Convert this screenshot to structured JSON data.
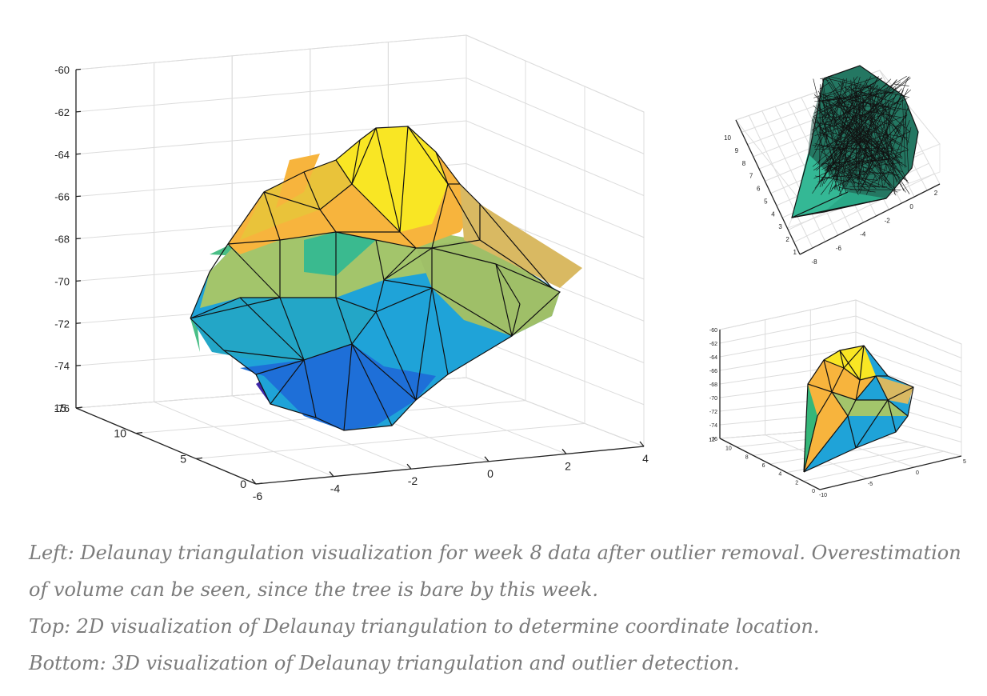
{
  "chart_data": [
    {
      "panel": "left",
      "type": "3d-surface",
      "title": "",
      "xlabel": "",
      "ylabel": "",
      "zlabel": "",
      "xlim": [
        -6,
        4
      ],
      "ylim": [
        0,
        15
      ],
      "zlim": [
        -76,
        -60
      ],
      "x_ticks": [
        "-6",
        "-4",
        "-2",
        "0",
        "2",
        "4"
      ],
      "y_ticks": [
        "0",
        "5",
        "10",
        "15"
      ],
      "z_ticks": [
        "-60",
        "-62",
        "-64",
        "-66",
        "-68",
        "-70",
        "-72",
        "-74",
        "-76"
      ],
      "grid": true,
      "colormap": [
        "#3e26a8",
        "#1e6fd8",
        "#1fa3d8",
        "#35b779",
        "#a3c56b",
        "#f7b43d",
        "#f9e624"
      ]
    },
    {
      "panel": "top-right",
      "type": "3d-surface",
      "title": "",
      "x_ticks": [
        "-8",
        "-6",
        "-4",
        "-2",
        "0",
        "2"
      ],
      "y_ticks": [
        "1",
        "2",
        "3",
        "4",
        "5",
        "6",
        "7",
        "8",
        "9",
        "10"
      ],
      "grid": true,
      "colormap": [
        "#2aa887",
        "#34b895"
      ]
    },
    {
      "panel": "bottom-right",
      "type": "3d-surface",
      "title": "",
      "x_ticks": [
        "-10",
        "-5",
        "0",
        "5"
      ],
      "y_ticks": [
        "0",
        "2",
        "4",
        "6",
        "8",
        "10",
        "12"
      ],
      "z_ticks": [
        "-60",
        "-62",
        "-64",
        "-66",
        "-68",
        "-70",
        "-72",
        "-74",
        "-76"
      ],
      "grid": true,
      "colormap": [
        "#1fa3d8",
        "#35b779",
        "#a3c56b",
        "#f7b43d",
        "#f9e624"
      ]
    }
  ],
  "caption": {
    "line1": "Left: Delaunay triangulation visualization for week 8 data after outlier removal. Overestimation",
    "line2": "of volume can be seen, since the tree is bare by this week.",
    "line3": "Top: 2D visualization of Delaunay triangulation to determine coordinate location.",
    "line4": "Bottom: 3D visualization of Delaunay triangulation and outlier detection."
  }
}
